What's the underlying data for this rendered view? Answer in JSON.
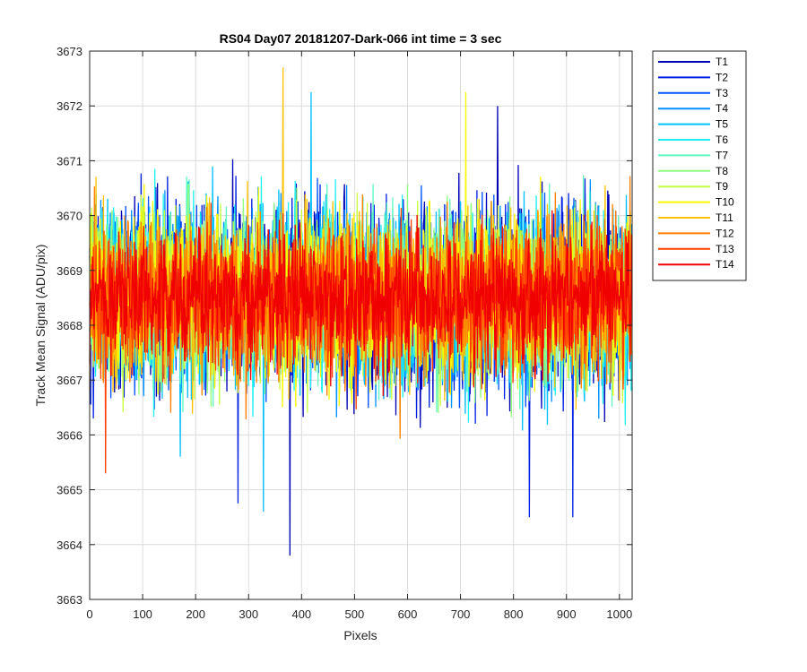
{
  "chart_data": {
    "type": "line",
    "title": "RS04 Day07 20181207-Dark-066 int time = 3 sec",
    "xlabel": "Pixels",
    "ylabel": "Track Mean Signal (ADU/pix)",
    "xlim": [
      0,
      1024
    ],
    "ylim": [
      3663,
      3673
    ],
    "xticks": [
      0,
      100,
      200,
      300,
      400,
      500,
      600,
      700,
      800,
      900,
      1000
    ],
    "yticks": [
      3663,
      3664,
      3665,
      3666,
      3667,
      3668,
      3669,
      3670,
      3671,
      3672,
      3673
    ],
    "grid": true,
    "legend_position": "outside-top-right",
    "x": {
      "start": 0,
      "stop": 1023,
      "step": 1
    },
    "noise_model": {
      "mean": 3668.5,
      "std": 0.95,
      "edge_offset": 0.8
    },
    "series": [
      {
        "name": "T1",
        "color": "#0000b7",
        "noise_std": 1.05
      },
      {
        "name": "T2",
        "color": "#0020e0",
        "noise_std": 1.0
      },
      {
        "name": "T3",
        "color": "#0050ff",
        "noise_std": 1.0
      },
      {
        "name": "T4",
        "color": "#0090ff",
        "noise_std": 1.0
      },
      {
        "name": "T5",
        "color": "#00c0ff",
        "noise_std": 1.0
      },
      {
        "name": "T6",
        "color": "#20f0f0",
        "noise_std": 0.95
      },
      {
        "name": "T7",
        "color": "#60f8c0",
        "noise_std": 0.95
      },
      {
        "name": "T8",
        "color": "#90ff80",
        "noise_std": 0.95
      },
      {
        "name": "T9",
        "color": "#c8ff40",
        "noise_std": 0.95
      },
      {
        "name": "T10",
        "color": "#f8f800",
        "noise_std": 0.95
      },
      {
        "name": "T11",
        "color": "#ffc000",
        "noise_std": 0.9
      },
      {
        "name": "T12",
        "color": "#ff8000",
        "noise_std": 0.9
      },
      {
        "name": "T13",
        "color": "#ff4000",
        "noise_std": 0.85
      },
      {
        "name": "T14",
        "color": "#f00000",
        "noise_std": 0.75
      }
    ],
    "annotations": [
      {
        "series": "T11",
        "x": 365,
        "y": 3672.7
      },
      {
        "series": "T1",
        "x": 378,
        "y": 3663.8
      },
      {
        "series": "T1",
        "x": 770,
        "y": 3672.0
      },
      {
        "series": "T5",
        "x": 418,
        "y": 3672.25
      },
      {
        "series": "T10",
        "x": 710,
        "y": 3672.25
      },
      {
        "series": "T2",
        "x": 280,
        "y": 3664.75
      },
      {
        "series": "T5",
        "x": 328,
        "y": 3664.6
      },
      {
        "series": "T2",
        "x": 830,
        "y": 3664.5
      },
      {
        "series": "T2",
        "x": 912,
        "y": 3664.5
      },
      {
        "series": "T13",
        "x": 30,
        "y": 3665.3
      }
    ]
  }
}
